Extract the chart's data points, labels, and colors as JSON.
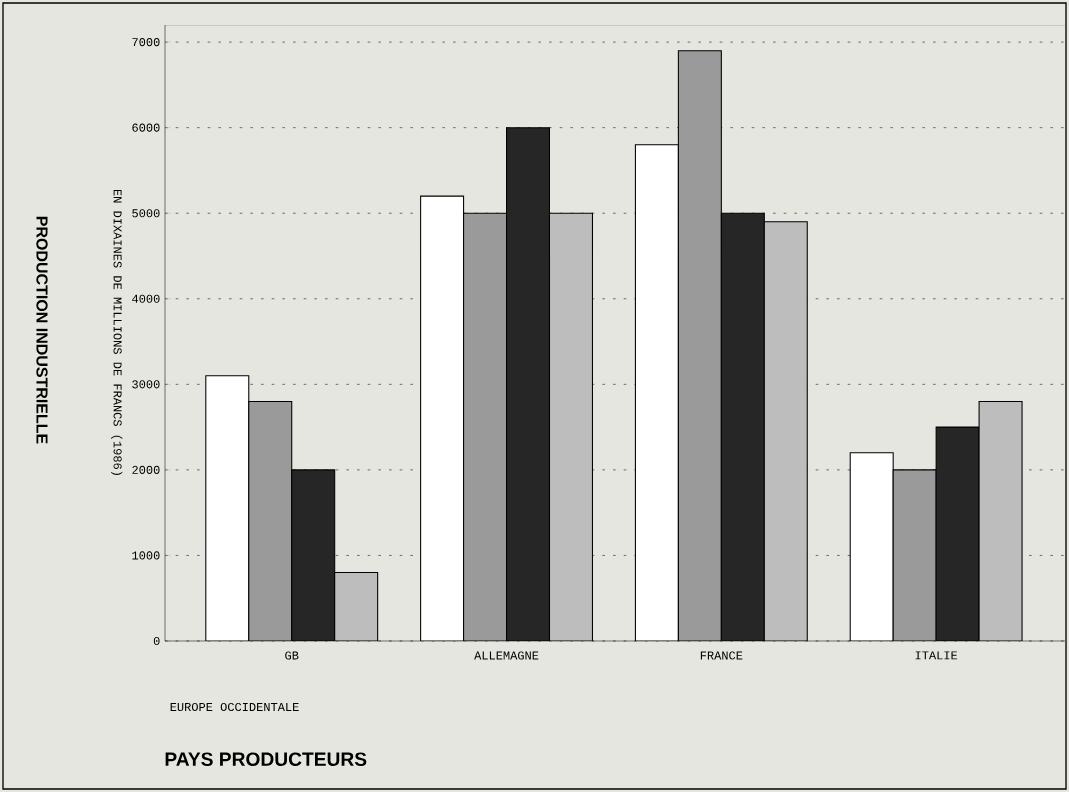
{
  "chart_data": {
    "type": "bar",
    "title": "PRODUCTION INDUSTRIELLE",
    "ylabel": "EN DIXAINES DE MILLIONS DE FRANCS (1986)",
    "xlabel": "PAYS PRODUCTEURS",
    "annotations": [
      "EUROPE OCCIDENTALE"
    ],
    "categories": [
      "GB",
      "ALLEMAGNE",
      "FRANCE",
      "ITALIE"
    ],
    "series": [
      {
        "color": "#ffffff",
        "values": [
          3100,
          5200,
          5800,
          2200
        ]
      },
      {
        "color": "#9a9a9a",
        "values": [
          2800,
          5000,
          6900,
          2000
        ]
      },
      {
        "color": "#262626",
        "values": [
          2000,
          6000,
          5000,
          2500
        ]
      },
      {
        "color": "#bdbdbd",
        "values": [
          800,
          5000,
          4900,
          2800
        ]
      }
    ],
    "ylim": [
      0,
      7200
    ],
    "yticks": [
      0,
      1000,
      2000,
      3000,
      4000,
      5000,
      6000,
      7000
    ],
    "grid": "y"
  }
}
